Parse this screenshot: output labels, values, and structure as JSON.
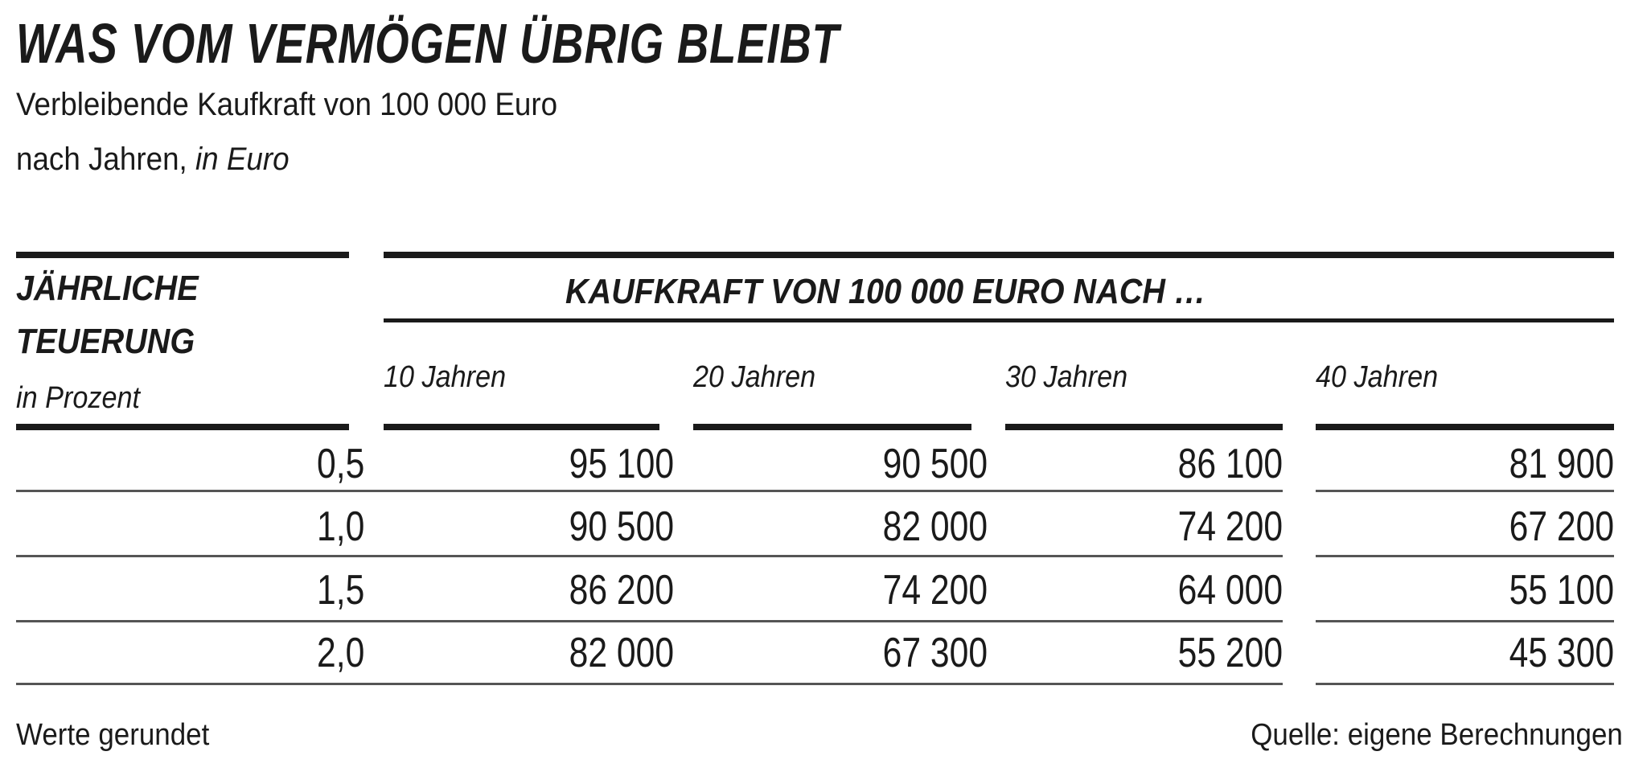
{
  "title": "WAS VOM VERMÖGEN ÜBRIG BLEIBT",
  "subtitle_line1": "Verbleibende Kaufkraft von 100 000 Euro",
  "subtitle_line2_plain": "nach Jahren, ",
  "subtitle_line2_italic": "in Euro",
  "table": {
    "row_header": {
      "line1": "JÄHRLICHE",
      "line2": "TEUERUNG",
      "unit": "in Prozent"
    },
    "group_header": "KAUFKRAFT VON 100 000 EURO NACH …",
    "columns": [
      "10 Jahren",
      "20 Jahren",
      "30 Jahren",
      "40 Jahren"
    ],
    "rows": [
      {
        "rate": "0,5",
        "values": [
          "95 100",
          "90 500",
          "86 100",
          "81 900"
        ]
      },
      {
        "rate": "1,0",
        "values": [
          "90 500",
          "82 000",
          "74 200",
          "67 200"
        ]
      },
      {
        "rate": "1,5",
        "values": [
          "86 200",
          "74 200",
          "64 000",
          "55 100"
        ]
      },
      {
        "rate": "2,0",
        "values": [
          "82 000",
          "67 300",
          "55 200",
          "45 300"
        ]
      }
    ]
  },
  "footer": {
    "note": "Werte gerundet",
    "source": "Quelle: eigene Berechnungen"
  }
}
